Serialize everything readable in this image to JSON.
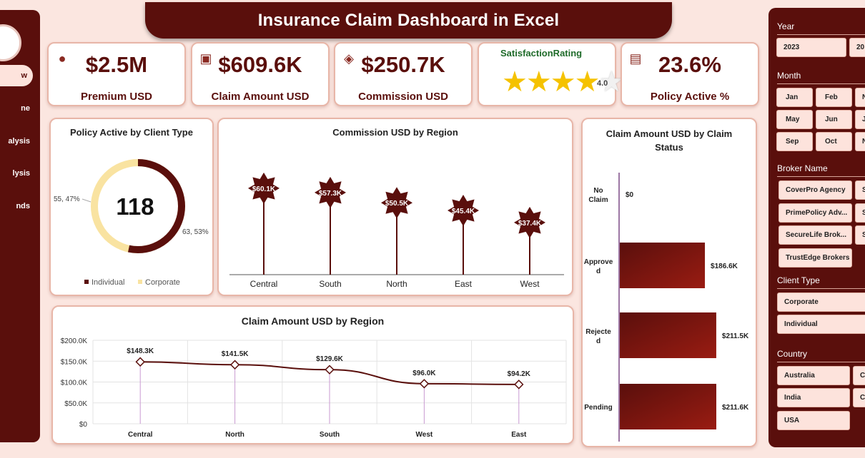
{
  "title": "Insurance Claim Dashboard in Excel",
  "nav": {
    "items": [
      "w",
      "ne",
      "alysis",
      "lysis",
      "nds"
    ]
  },
  "kpis": [
    {
      "value": "$2.5M",
      "label": "Premium USD",
      "icon": "money-bag-icon"
    },
    {
      "value": "$609.6K",
      "label": "Claim Amount USD",
      "icon": "cash-hand-icon"
    },
    {
      "value": "$250.7K",
      "label": "Commission USD",
      "icon": "handshake-icon"
    },
    {
      "title": "SatisfactionRating",
      "rating": 4.0,
      "rating_label": "4.0",
      "max": 5
    },
    {
      "value": "23.6%",
      "label": "Policy Active %",
      "icon": "policy-document-icon"
    }
  ],
  "donut": {
    "title": "Policy Active by Client Type",
    "center": "118",
    "label_individual": "63, 53%",
    "label_corporate": "55, 47%",
    "legend": [
      "Individual",
      "Corporate"
    ],
    "colors": {
      "individual": "#5a0f0c",
      "corporate": "#f9e3a1"
    }
  },
  "chart_data": [
    {
      "type": "pie",
      "title": "Policy Active by Client Type",
      "categories": [
        "Individual",
        "Corporate"
      ],
      "values": [
        63,
        55
      ],
      "total": 118
    },
    {
      "type": "bar",
      "title": "Commission USD by Region",
      "categories": [
        "Central",
        "South",
        "North",
        "East",
        "West"
      ],
      "values": [
        60.1,
        57.3,
        50.5,
        45.4,
        37.4
      ],
      "labels": [
        "$60.1K",
        "$57.3K",
        "$50.5K",
        "$45.4K",
        "$37.4K"
      ]
    },
    {
      "type": "line",
      "title": "Claim Amount USD by Region",
      "categories": [
        "Central",
        "North",
        "South",
        "West",
        "East"
      ],
      "values": [
        148.3,
        141.5,
        129.6,
        96.0,
        94.2
      ],
      "labels": [
        "$148.3K",
        "$141.5K",
        "$129.6K",
        "$96.0K",
        "$94.2K"
      ],
      "yticks": [
        "$200.0K",
        "$150.0K",
        "$100.0K",
        "$50.0K",
        "$0"
      ],
      "ylim": [
        0,
        200
      ]
    },
    {
      "type": "bar",
      "orientation": "horizontal",
      "title": "Claim Amount USD by Claim Status",
      "categories": [
        "No Claim",
        "Approved",
        "Rejected",
        "Pending"
      ],
      "category_lines": [
        [
          "No",
          "Claim"
        ],
        [
          "Approve",
          "d"
        ],
        [
          "Rejecte",
          "d"
        ],
        [
          "Pending"
        ]
      ],
      "values": [
        0,
        186.6,
        211.5,
        211.6
      ],
      "labels": [
        "$0",
        "$186.6K",
        "$211.5K",
        "$211.6K"
      ]
    }
  ],
  "colors": {
    "brand": "#5a0f0c",
    "bar": "#7a1410",
    "background": "#fbe6e0",
    "card_border": "#e8b6a8"
  },
  "slicers": {
    "year": {
      "title": "Year",
      "items": [
        "2023",
        "20"
      ]
    },
    "month": {
      "title": "Month",
      "items": [
        "Jan",
        "Feb",
        "N",
        "May",
        "Jun",
        "J",
        "Sep",
        "Oct",
        "N"
      ]
    },
    "broker": {
      "title": "Broker Name",
      "items": [
        "CoverPro Agency",
        "S",
        "PrimePolicy Adv...",
        "S",
        "SecureLife Brok...",
        "S",
        "TrustEdge Brokers"
      ]
    },
    "client": {
      "title": "Client Type",
      "items": [
        "Corporate",
        "Individual"
      ]
    },
    "country": {
      "title": "Country",
      "items": [
        "Australia",
        "C",
        "India",
        "C",
        "USA"
      ]
    }
  }
}
